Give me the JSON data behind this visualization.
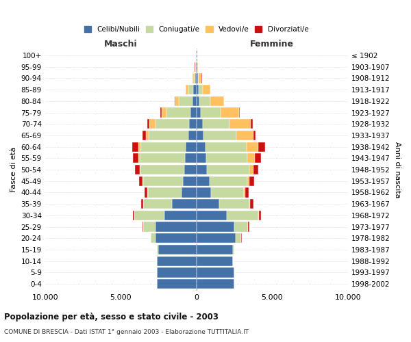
{
  "age_groups": [
    "0-4",
    "5-9",
    "10-14",
    "15-19",
    "20-24",
    "25-29",
    "30-34",
    "35-39",
    "40-44",
    "45-49",
    "50-54",
    "55-59",
    "60-64",
    "65-69",
    "70-74",
    "75-79",
    "80-84",
    "85-89",
    "90-94",
    "95-99",
    "100+"
  ],
  "birth_years": [
    "1998-2002",
    "1993-1997",
    "1988-1992",
    "1983-1987",
    "1978-1982",
    "1973-1977",
    "1968-1972",
    "1963-1967",
    "1958-1962",
    "1953-1957",
    "1948-1952",
    "1943-1947",
    "1938-1942",
    "1933-1937",
    "1928-1932",
    "1923-1927",
    "1918-1922",
    "1913-1917",
    "1908-1912",
    "1903-1907",
    "≤ 1902"
  ],
  "male_celibi": [
    2600,
    2600,
    2600,
    2500,
    2700,
    2700,
    2100,
    1600,
    1000,
    900,
    800,
    750,
    700,
    550,
    500,
    400,
    250,
    200,
    100,
    50,
    20
  ],
  "male_coniugati": [
    5,
    10,
    20,
    100,
    300,
    800,
    2000,
    1900,
    2200,
    2600,
    2900,
    3000,
    3000,
    2600,
    2200,
    1600,
    900,
    350,
    80,
    30,
    10
  ],
  "male_vedovi": [
    0,
    0,
    0,
    0,
    5,
    5,
    10,
    20,
    30,
    40,
    60,
    100,
    150,
    200,
    400,
    300,
    250,
    150,
    60,
    20,
    5
  ],
  "male_divorziati": [
    0,
    0,
    0,
    5,
    20,
    50,
    100,
    150,
    200,
    250,
    300,
    350,
    400,
    200,
    150,
    80,
    30,
    20,
    10,
    5,
    0
  ],
  "female_celibi": [
    2500,
    2500,
    2400,
    2400,
    2600,
    2500,
    2000,
    1500,
    950,
    850,
    700,
    650,
    600,
    450,
    400,
    300,
    200,
    150,
    80,
    40,
    15
  ],
  "female_coniugati": [
    5,
    10,
    20,
    100,
    350,
    900,
    2100,
    2000,
    2200,
    2500,
    2800,
    2700,
    2700,
    2200,
    1800,
    1300,
    700,
    250,
    70,
    25,
    8
  ],
  "female_vedovi": [
    0,
    0,
    0,
    0,
    10,
    15,
    30,
    50,
    80,
    150,
    250,
    500,
    800,
    1100,
    1400,
    1200,
    900,
    500,
    200,
    50,
    10
  ],
  "female_divorziati": [
    0,
    0,
    0,
    10,
    30,
    80,
    150,
    200,
    200,
    300,
    350,
    400,
    450,
    150,
    100,
    80,
    30,
    20,
    10,
    5,
    0
  ],
  "colors": {
    "celibi": "#4472a8",
    "coniugati": "#c5d9a0",
    "vedovi": "#ffc060",
    "divorziati": "#cc1010"
  },
  "xlim": [
    -10000,
    10000
  ],
  "xticks": [
    -10000,
    -5000,
    0,
    5000,
    10000
  ],
  "xtick_labels": [
    "10.000",
    "5.000",
    "0",
    "5.000",
    "10.000"
  ],
  "title": "Popolazione per età, sesso e stato civile - 2003",
  "subtitle": "COMUNE DI BRESCIA - Dati ISTAT 1° gennaio 2003 - Elaborazione TUTTITALIA.IT",
  "ylabel_left": "Fasce di età",
  "ylabel_right": "Anni di nascita",
  "label_maschi": "Maschi",
  "label_femmine": "Femmine",
  "legend_labels": [
    "Celibi/Nubili",
    "Coniugati/e",
    "Vedovi/e",
    "Divorziati/e"
  ],
  "bg_color": "#ffffff",
  "bar_height": 0.85
}
